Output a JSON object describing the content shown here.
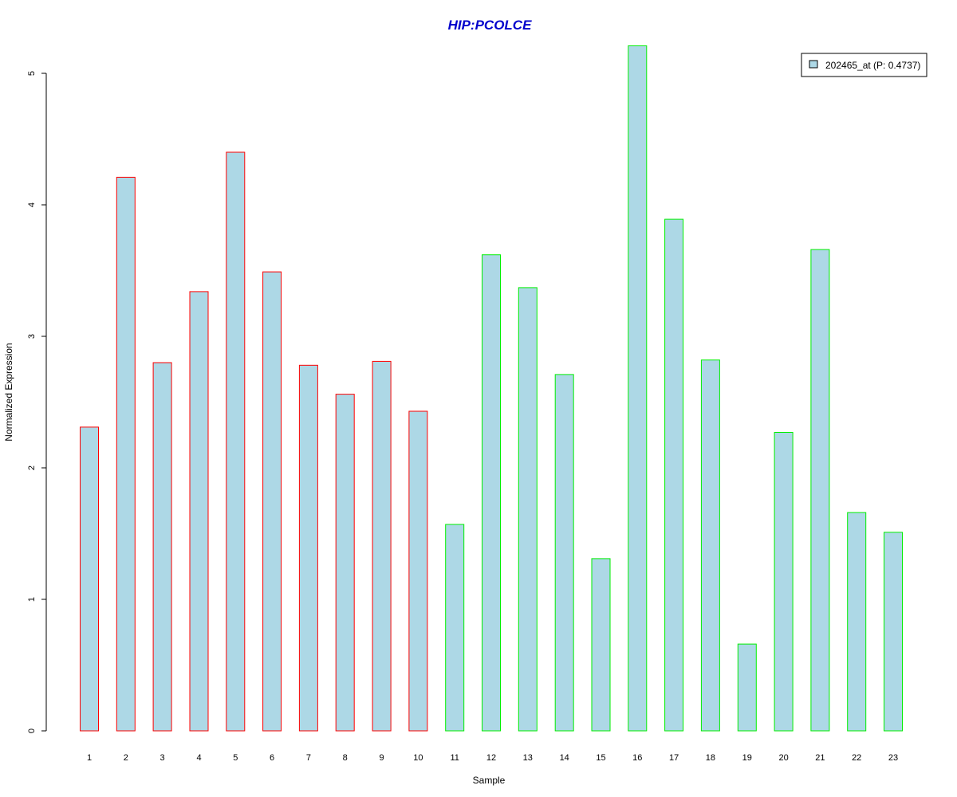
{
  "chart_data": {
    "type": "bar",
    "title": "HIP:PCOLCE",
    "xlabel": "Sample",
    "ylabel": "Normalized Expression",
    "categories": [
      "1",
      "2",
      "3",
      "4",
      "5",
      "6",
      "7",
      "8",
      "9",
      "10",
      "11",
      "12",
      "13",
      "14",
      "15",
      "16",
      "17",
      "18",
      "19",
      "20",
      "21",
      "22",
      "23"
    ],
    "series": [
      {
        "name": "202465_at (P: 0.4737)",
        "values": [
          2.31,
          4.21,
          2.8,
          3.34,
          4.4,
          3.49,
          2.78,
          2.56,
          2.81,
          2.43,
          1.57,
          3.62,
          3.37,
          2.71,
          1.31,
          5.21,
          3.89,
          2.82,
          0.66,
          2.27,
          3.66,
          1.66,
          1.51
        ]
      }
    ],
    "group_a_count": 10,
    "ylim": [
      0,
      5.2
    ],
    "yticks": [
      0,
      1,
      2,
      3,
      4,
      5
    ],
    "grid": false,
    "legend_position": "top-right",
    "colors": {
      "title": "#0000cc",
      "bar_fill": "#add8e6",
      "group_a_border": "#ff0000",
      "group_b_border": "#00ee00",
      "axis": "#000000"
    }
  }
}
